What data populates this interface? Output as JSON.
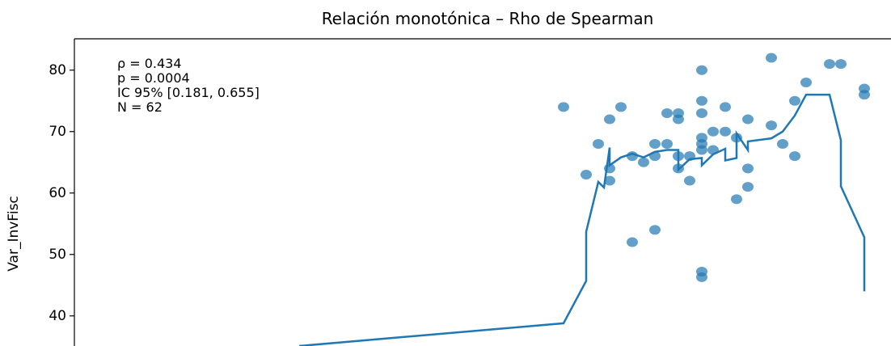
{
  "chart_data": {
    "type": "scatter",
    "title": "Relación monotónica – Rho de Spearman",
    "y_label": "Var_InvFisc",
    "annotations": [
      "ρ = 0.434",
      "p = 0.0004",
      "IC 95% [0.181, 0.655]",
      "N = 62"
    ],
    "xlim": [
      0,
      101
    ],
    "ylim": [
      35.1,
      85.1
    ],
    "yticks": [
      40,
      50,
      60,
      70,
      80
    ],
    "series": [
      {
        "type": "scatter",
        "color": "#1f77b4",
        "x": [
          60.5,
          63.3,
          64.8,
          66.2,
          67.6,
          66.2,
          66.2,
          69,
          70.4,
          71.8,
          71.8,
          73.3,
          73.3,
          74.7,
          74.7,
          74.7,
          74.7,
          76.1,
          76.1,
          77.6,
          77.6,
          77.6,
          77.6,
          77.6,
          77.6,
          79,
          79,
          80.5,
          80.5,
          81.9,
          81.9,
          83.3,
          83.3,
          83.3,
          86.2,
          86.2,
          87.6,
          89.1,
          89.1,
          90.5,
          93.4,
          94.8,
          97.7,
          97.7,
          69,
          71.8,
          77.6,
          77.6
        ],
        "values": [
          74,
          63,
          68,
          72,
          74,
          64,
          62,
          66,
          65,
          68,
          66,
          68,
          73,
          73,
          72,
          64,
          66,
          66,
          62,
          80,
          75,
          73,
          69,
          68,
          67,
          67,
          70,
          70,
          74,
          69,
          59,
          72,
          64,
          61,
          82,
          71,
          68,
          75,
          66,
          78,
          81,
          81,
          77,
          76,
          52,
          54,
          47.2,
          46.3
        ]
      },
      {
        "type": "line",
        "color": "#1f77b4",
        "x": [
          27.8,
          60.5,
          63.3,
          63.3,
          64.8,
          65.5,
          66.2,
          66.2,
          67.6,
          69,
          70.4,
          71.8,
          73.3,
          74.7,
          74.7,
          76.1,
          77.6,
          77.6,
          79,
          80.5,
          80.5,
          81.9,
          81.9,
          83.3,
          83.3,
          86.2,
          87.6,
          89.1,
          90.5,
          93.4,
          94.8,
          94.8,
          97.7,
          97.7
        ],
        "values": [
          35.1,
          38.8,
          45.7,
          53.7,
          61.8,
          60.9,
          67.4,
          64.5,
          65.8,
          66.4,
          65.8,
          66.7,
          67,
          67,
          63.8,
          65.5,
          65.7,
          64.5,
          66.3,
          67.2,
          65.3,
          65.7,
          69.7,
          67,
          68.4,
          68.9,
          70,
          72.6,
          76,
          76,
          68.6,
          61.1,
          52.8,
          44
        ]
      }
    ]
  }
}
